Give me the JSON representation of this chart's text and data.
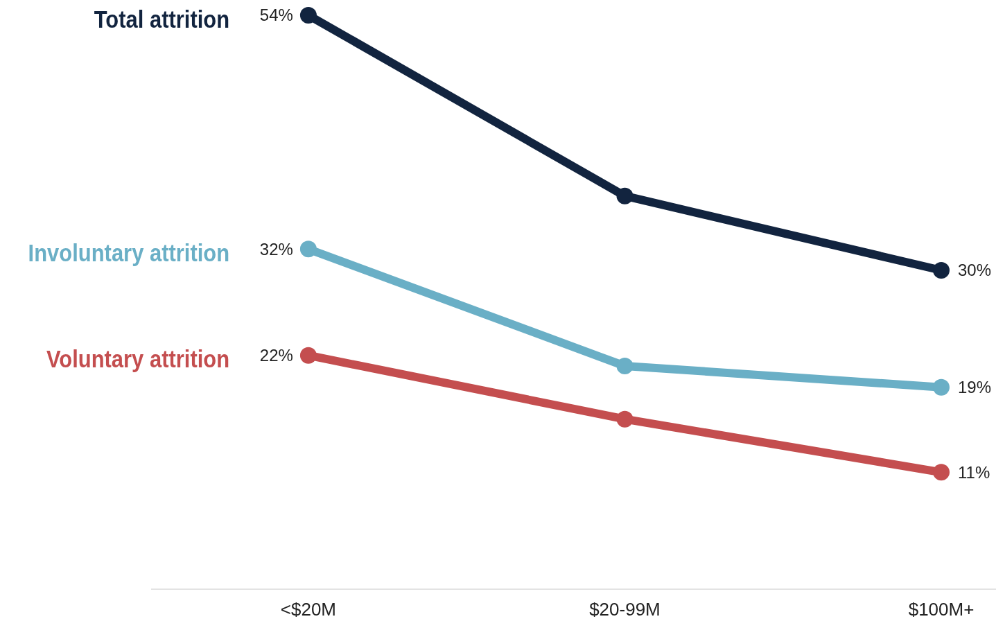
{
  "chart_data": {
    "type": "line",
    "categories": [
      "<$20M",
      "$20-99M",
      "$100M+"
    ],
    "tick_labels": "x",
    "marker": "circle",
    "line_style": "solid",
    "series": [
      {
        "name": "Total attrition",
        "color": "#12243f",
        "values": [
          54,
          37,
          30
        ],
        "value_labels": [
          "54%",
          null,
          "30%"
        ]
      },
      {
        "name": "Involuntary attrition",
        "color": "#6aafc6",
        "values": [
          32,
          21,
          19
        ],
        "value_labels": [
          "32%",
          null,
          "19%"
        ]
      },
      {
        "name": "Voluntary attrition",
        "color": "#c44e4f",
        "values": [
          22,
          16,
          11
        ],
        "value_labels": [
          "22%",
          null,
          "11%"
        ]
      }
    ]
  }
}
